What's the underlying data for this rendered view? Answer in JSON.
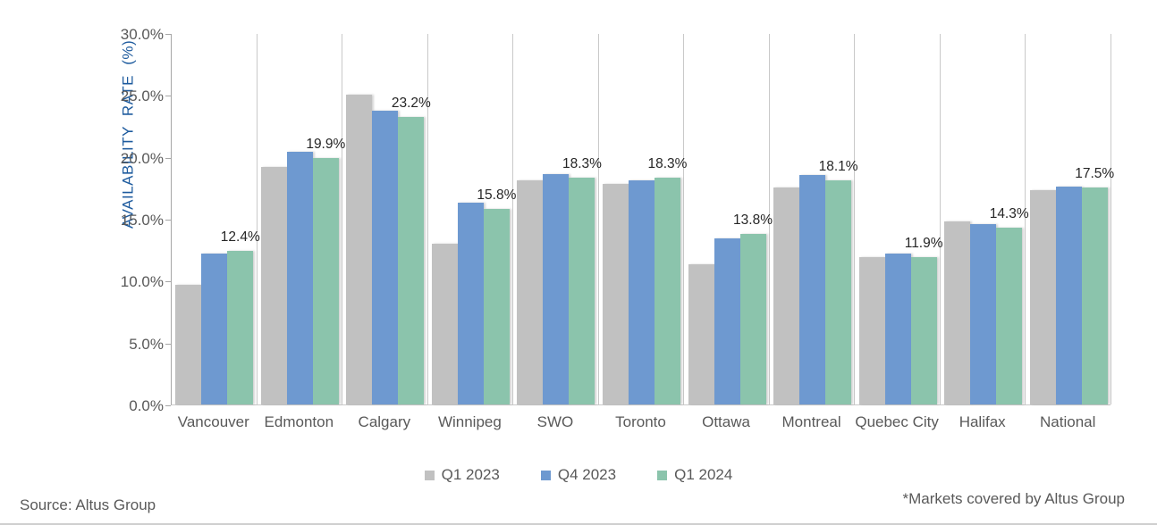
{
  "chart_data": {
    "type": "bar",
    "title": "",
    "ylabel": "AVAILABILITY RATE (%)",
    "xlabel": "",
    "ylim": [
      0,
      30
    ],
    "ytick_step": 5,
    "yticks_top_to_bottom": [
      "30.0%",
      "25.0%",
      "20.0%",
      "15.0%",
      "10.0%",
      "5.0%",
      "0.0%"
    ],
    "grid": "vertical category separators only",
    "legend_position": "bottom-center",
    "categories": [
      "Vancouver",
      "Edmonton",
      "Calgary",
      "Winnipeg",
      "SWO",
      "Toronto",
      "Ottawa",
      "Montreal",
      "Quebec City",
      "Halifax",
      "National"
    ],
    "series": [
      {
        "name": "Q1 2023",
        "color": "#c1c1c1",
        "values": [
          9.7,
          19.2,
          25.0,
          13.0,
          18.1,
          17.8,
          11.3,
          17.5,
          11.9,
          14.8,
          17.3
        ]
      },
      {
        "name": "Q4 2023",
        "color": "#6e99d0",
        "values": [
          12.2,
          20.4,
          23.7,
          16.3,
          18.6,
          18.1,
          13.4,
          18.5,
          12.2,
          14.6,
          17.6
        ]
      },
      {
        "name": "Q1 2024",
        "color": "#8bc4ac",
        "values": [
          12.4,
          19.9,
          23.2,
          15.8,
          18.3,
          18.3,
          13.8,
          18.1,
          11.9,
          14.3,
          17.5
        ],
        "data_labels": [
          "12.4%",
          "19.9%",
          "23.2%",
          "15.8%",
          "18.3%",
          "18.3%",
          "13.8%",
          "18.1%",
          "11.9%",
          "14.3%",
          "17.5%"
        ]
      }
    ]
  },
  "footer": {
    "source": "Source: Altus Group",
    "note": "*Markets covered by Altus Group"
  },
  "colors": {
    "axis_title": "#1e5b9e",
    "tick_label": "#595959",
    "category_label": "#595959",
    "data_label": "#262626",
    "gridline": "#c9c9c9",
    "axis_line": "#a6a6a6"
  }
}
